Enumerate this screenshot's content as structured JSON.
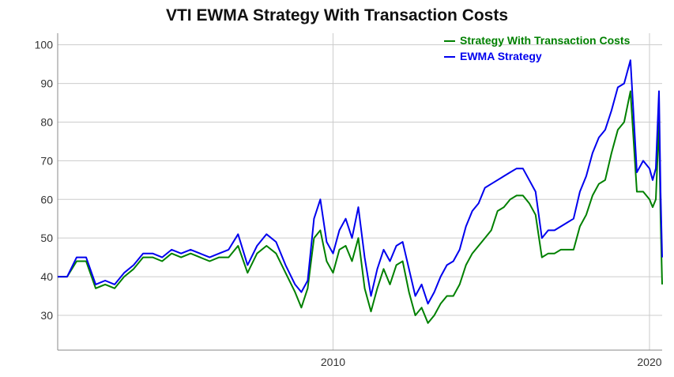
{
  "chart_data": {
    "type": "line",
    "title": "VTI EWMA Strategy With Transaction Costs",
    "xlabel": "",
    "ylabel": "",
    "xlim": [
      2001.3,
      2020.4
    ],
    "ylim": [
      21,
      103
    ],
    "y_ticks": [
      30,
      40,
      50,
      60,
      70,
      80,
      90,
      100
    ],
    "x_ticks": [
      {
        "value": 2010,
        "label": "2010"
      },
      {
        "value": 2020,
        "label": "2020"
      }
    ],
    "grid": {
      "horizontal": true,
      "vertical": true
    },
    "legend_position": "top-right",
    "series": [
      {
        "name": "Strategy With Transaction Costs",
        "color": "#008000",
        "x": [
          2001.3,
          2001.6,
          2001.9,
          2002.2,
          2002.5,
          2002.8,
          2003.1,
          2003.4,
          2003.7,
          2004.0,
          2004.3,
          2004.6,
          2004.9,
          2005.2,
          2005.5,
          2005.8,
          2006.1,
          2006.4,
          2006.7,
          2007.0,
          2007.3,
          2007.6,
          2007.9,
          2008.2,
          2008.5,
          2008.8,
          2009.0,
          2009.2,
          2009.4,
          2009.6,
          2009.8,
          2010.0,
          2010.2,
          2010.4,
          2010.6,
          2010.8,
          2011.0,
          2011.2,
          2011.4,
          2011.6,
          2011.8,
          2012.0,
          2012.2,
          2012.4,
          2012.6,
          2012.8,
          2013.0,
          2013.2,
          2013.4,
          2013.6,
          2013.8,
          2014.0,
          2014.2,
          2014.4,
          2014.6,
          2014.8,
          2015.0,
          2015.2,
          2015.4,
          2015.6,
          2015.8,
          2016.0,
          2016.2,
          2016.4,
          2016.6,
          2016.8,
          2017.0,
          2017.2,
          2017.4,
          2017.6,
          2017.8,
          2018.0,
          2018.2,
          2018.4,
          2018.6,
          2018.8,
          2019.0,
          2019.2,
          2019.4,
          2019.6,
          2019.8,
          2020.0,
          2020.1,
          2020.2,
          2020.3,
          2020.35,
          2020.4
        ],
        "values": [
          40,
          40,
          44,
          44,
          37,
          38,
          37,
          40,
          42,
          45,
          45,
          44,
          46,
          45,
          46,
          45,
          44,
          45,
          45,
          48,
          41,
          46,
          48,
          46,
          41,
          36,
          32,
          37,
          50,
          52,
          44,
          41,
          47,
          48,
          44,
          50,
          37,
          31,
          37,
          42,
          38,
          43,
          44,
          36,
          30,
          32,
          28,
          30,
          33,
          35,
          35,
          38,
          43,
          46,
          48,
          50,
          52,
          57,
          58,
          60,
          61,
          61,
          59,
          56,
          45,
          46,
          46,
          47,
          47,
          47,
          53,
          56,
          61,
          64,
          65,
          72,
          78,
          80,
          88,
          62,
          62,
          60,
          58,
          60,
          80,
          55,
          38
        ]
      },
      {
        "name": "EWMA Strategy",
        "color": "#0000ee",
        "x": [
          2001.3,
          2001.6,
          2001.9,
          2002.2,
          2002.5,
          2002.8,
          2003.1,
          2003.4,
          2003.7,
          2004.0,
          2004.3,
          2004.6,
          2004.9,
          2005.2,
          2005.5,
          2005.8,
          2006.1,
          2006.4,
          2006.7,
          2007.0,
          2007.3,
          2007.6,
          2007.9,
          2008.2,
          2008.5,
          2008.8,
          2009.0,
          2009.2,
          2009.4,
          2009.6,
          2009.8,
          2010.0,
          2010.2,
          2010.4,
          2010.6,
          2010.8,
          2011.0,
          2011.2,
          2011.4,
          2011.6,
          2011.8,
          2012.0,
          2012.2,
          2012.4,
          2012.6,
          2012.8,
          2013.0,
          2013.2,
          2013.4,
          2013.6,
          2013.8,
          2014.0,
          2014.2,
          2014.4,
          2014.6,
          2014.8,
          2015.0,
          2015.2,
          2015.4,
          2015.6,
          2015.8,
          2016.0,
          2016.2,
          2016.4,
          2016.6,
          2016.8,
          2017.0,
          2017.2,
          2017.4,
          2017.6,
          2017.8,
          2018.0,
          2018.2,
          2018.4,
          2018.6,
          2018.8,
          2019.0,
          2019.2,
          2019.4,
          2019.6,
          2019.8,
          2020.0,
          2020.1,
          2020.2,
          2020.3,
          2020.35,
          2020.4
        ],
        "values": [
          40,
          40,
          45,
          45,
          38,
          39,
          38,
          41,
          43,
          46,
          46,
          45,
          47,
          46,
          47,
          46,
          45,
          46,
          47,
          51,
          43,
          48,
          51,
          49,
          43,
          38,
          36,
          39,
          55,
          60,
          49,
          46,
          52,
          55,
          50,
          58,
          45,
          35,
          42,
          47,
          44,
          48,
          49,
          42,
          35,
          38,
          33,
          36,
          40,
          43,
          44,
          47,
          53,
          57,
          59,
          63,
          64,
          65,
          66,
          67,
          68,
          68,
          65,
          62,
          50,
          52,
          52,
          53,
          54,
          55,
          62,
          66,
          72,
          76,
          78,
          83,
          89,
          90,
          96,
          67,
          70,
          68,
          65,
          68,
          88,
          62,
          45
        ]
      }
    ]
  }
}
